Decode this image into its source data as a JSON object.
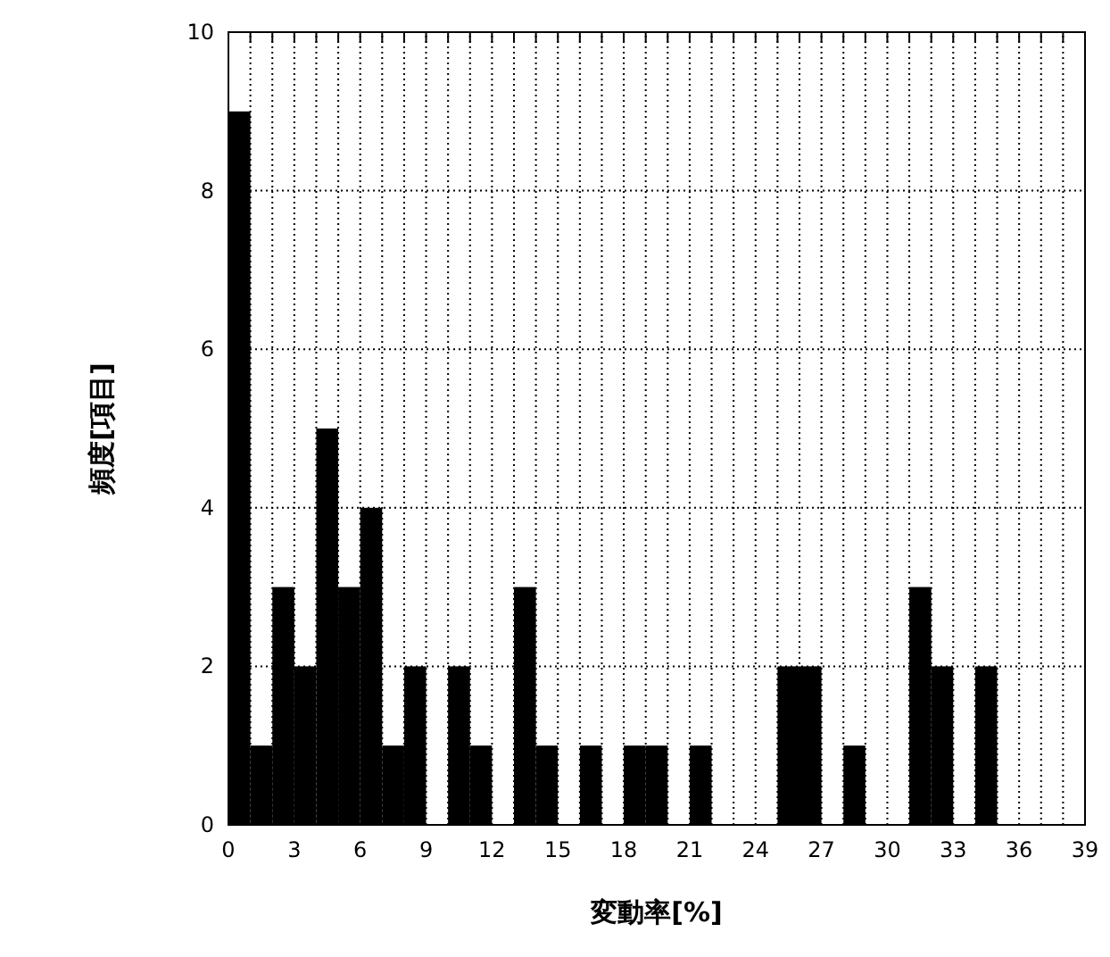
{
  "chart_data": {
    "type": "histogram",
    "xlabel": "変動率[%]",
    "ylabel": "頻度[項目]",
    "bins": [
      0,
      1,
      2,
      3,
      4,
      5,
      6,
      7,
      8,
      9,
      10,
      11,
      12,
      13,
      14,
      15,
      16,
      17,
      18,
      19,
      20,
      21,
      22,
      23,
      24,
      25,
      26,
      27,
      28,
      29,
      30,
      31,
      32,
      33,
      34,
      35,
      36,
      37,
      38,
      39
    ],
    "values": [
      9,
      1,
      3,
      2,
      5,
      3,
      4,
      1,
      2,
      0,
      2,
      1,
      0,
      3,
      1,
      0,
      1,
      0,
      1,
      1,
      0,
      1,
      0,
      0,
      0,
      2,
      2,
      0,
      1,
      0,
      0,
      3,
      2,
      0,
      2,
      0,
      0,
      0,
      0
    ],
    "color": "#000000",
    "xlim": [
      0,
      39
    ],
    "xticks": [
      0,
      {
        "value": 1,
        "label": null
      },
      {
        "value": 2,
        "label": null
      },
      3,
      {
        "value": 4,
        "label": null
      },
      {
        "value": 5,
        "label": null
      },
      6,
      {
        "value": 7,
        "label": null
      },
      {
        "value": 8,
        "label": null
      },
      9,
      {
        "value": 10,
        "label": null
      },
      {
        "value": 11,
        "label": null
      },
      12,
      {
        "value": 13,
        "label": null
      },
      {
        "value": 14,
        "label": null
      },
      15,
      {
        "value": 16,
        "label": null
      },
      {
        "value": 17,
        "label": null
      },
      18,
      {
        "value": 19,
        "label": null
      },
      {
        "value": 20,
        "label": null
      },
      21,
      {
        "value": 22,
        "label": null
      },
      {
        "value": 23,
        "label": null
      },
      24,
      {
        "value": 25,
        "label": null
      },
      {
        "value": 26,
        "label": null
      },
      27,
      {
        "value": 28,
        "label": null
      },
      {
        "value": 29,
        "label": null
      },
      30,
      {
        "value": 31,
        "label": null
      },
      {
        "value": 32,
        "label": null
      },
      33,
      {
        "value": 34,
        "label": null
      },
      {
        "value": 35,
        "label": null
      },
      36,
      {
        "value": 37,
        "label": null
      },
      {
        "value": 38,
        "label": null
      },
      39
    ],
    "ylim": [
      0,
      10
    ],
    "yticks": [
      0,
      2,
      4,
      6,
      8,
      10
    ],
    "grid": true
  }
}
